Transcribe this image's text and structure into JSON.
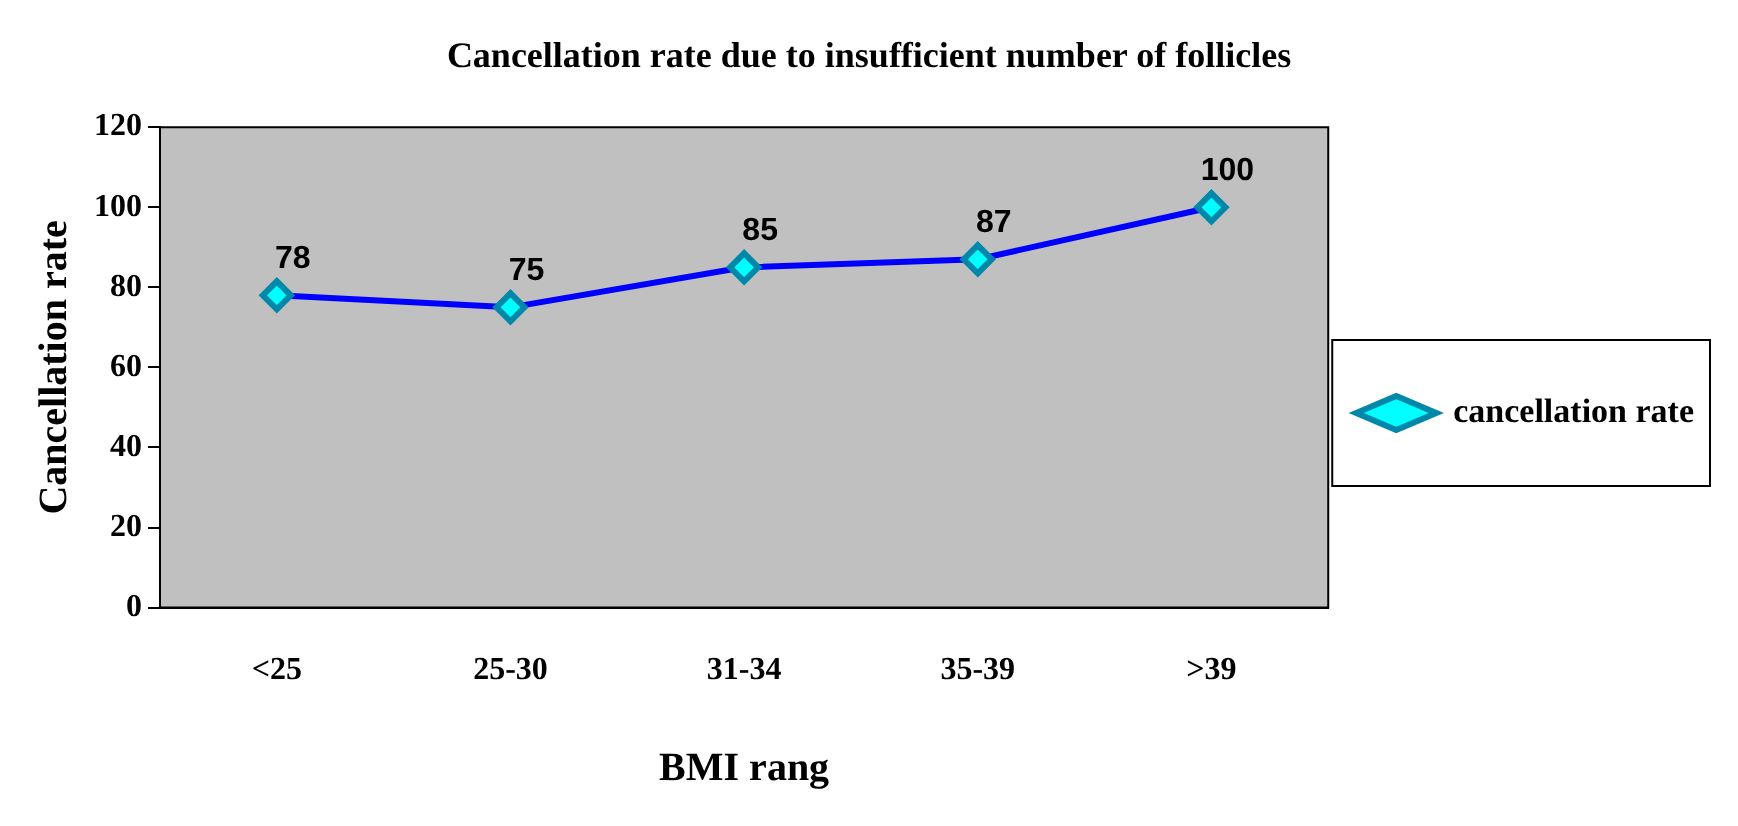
{
  "chart_data": {
    "type": "line",
    "title": "Cancellation rate due to insufficient number of follicles",
    "xlabel": "BMI rang",
    "ylabel": "Cancellation rate",
    "categories": [
      "<25",
      "25-30",
      "31-34",
      "35-39",
      ">39"
    ],
    "series": [
      {
        "name": "cancellation rate",
        "color": "#0000ff",
        "values": [
          78,
          75,
          85,
          87,
          100
        ]
      }
    ],
    "ylim": [
      0,
      120
    ],
    "yticks": [
      0,
      20,
      40,
      60,
      80,
      100,
      120
    ],
    "grid": false,
    "legend": "right",
    "marker": "diamond",
    "line_style": "solid",
    "data_labels": true
  }
}
